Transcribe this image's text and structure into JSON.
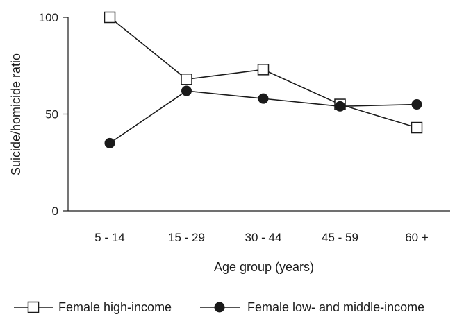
{
  "chart_data": {
    "type": "line",
    "title": "",
    "xlabel": "Age group (years)",
    "ylabel": "Suicide/homicide ratio",
    "categories": [
      "5 - 14",
      "15 - 29",
      "30 - 44",
      "45 - 59",
      "60 +"
    ],
    "ylim": [
      0,
      100
    ],
    "yticks": [
      0,
      50,
      100
    ],
    "grid": false,
    "legend_position": "bottom",
    "series": [
      {
        "name": "Female high-income",
        "marker": "open-square",
        "color": "#1a1a1a",
        "values": [
          100,
          68,
          73,
          55,
          43
        ]
      },
      {
        "name": "Female low- and middle-income",
        "marker": "filled-circle",
        "color": "#1a1a1a",
        "values": [
          35,
          62,
          58,
          54,
          55
        ]
      }
    ]
  }
}
